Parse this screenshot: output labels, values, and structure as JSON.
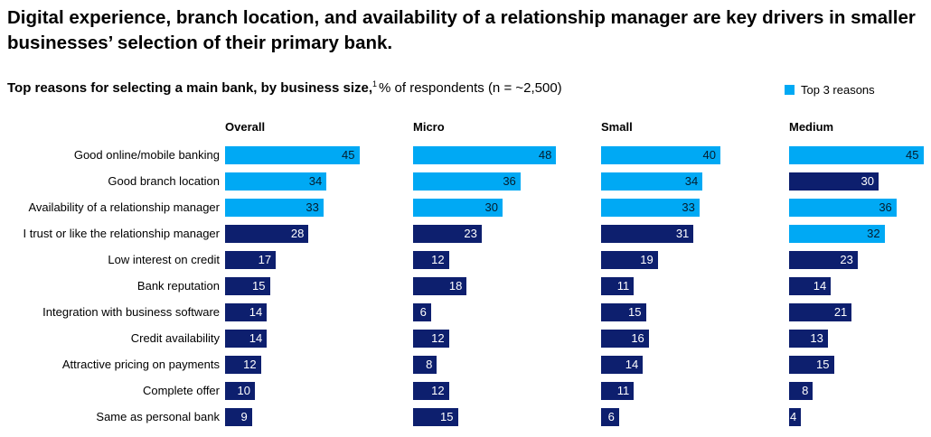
{
  "headline": "Digital experience, branch location, and availability of a relationship manager are key drivers in smaller businesses’ selection of their primary bank.",
  "subtitle_bold": "Top reasons for selecting a main bank, by business size,",
  "subtitle_sup": "1",
  "subtitle_rest": "% of respondents (n = ~2,500)",
  "legend_label": "Top 3 reasons",
  "colors": {
    "top3": "#00A9F4",
    "other": "#0D1F6E",
    "text_on_light": "#051C2C",
    "text_on_dark": "#ffffff"
  },
  "chart_data": {
    "type": "bar",
    "orientation": "horizontal",
    "title": "Top reasons for selecting a main bank, by business size,",
    "unit": "% of respondents (n = ~2,500)",
    "categories": [
      "Good online/mobile banking",
      "Good branch location",
      "Availability of a relationship manager",
      "I trust or like the relationship manager",
      "Low interest on credit",
      "Bank reputation",
      "Integration with business software",
      "Credit availability",
      "Attractive pricing on payments",
      "Complete offer",
      "Same as personal bank"
    ],
    "series": [
      {
        "name": "Overall",
        "values": [
          45,
          34,
          33,
          28,
          17,
          15,
          14,
          14,
          12,
          10,
          9
        ],
        "top3": [
          true,
          true,
          true,
          false,
          false,
          false,
          false,
          false,
          false,
          false,
          false
        ]
      },
      {
        "name": "Micro",
        "values": [
          48,
          36,
          30,
          23,
          12,
          18,
          6,
          12,
          8,
          12,
          15
        ],
        "top3": [
          true,
          true,
          true,
          false,
          false,
          false,
          false,
          false,
          false,
          false,
          false
        ]
      },
      {
        "name": "Small",
        "values": [
          40,
          34,
          33,
          31,
          19,
          11,
          15,
          16,
          14,
          11,
          6
        ],
        "top3": [
          true,
          true,
          true,
          false,
          false,
          false,
          false,
          false,
          false,
          false,
          false
        ]
      },
      {
        "name": "Medium",
        "values": [
          45,
          30,
          36,
          32,
          23,
          14,
          21,
          13,
          15,
          8,
          4
        ],
        "top3": [
          true,
          false,
          true,
          true,
          false,
          false,
          false,
          false,
          false,
          false,
          false
        ]
      }
    ],
    "legend": [
      "Top 3 reasons"
    ],
    "xlim": [
      0,
      50
    ]
  }
}
